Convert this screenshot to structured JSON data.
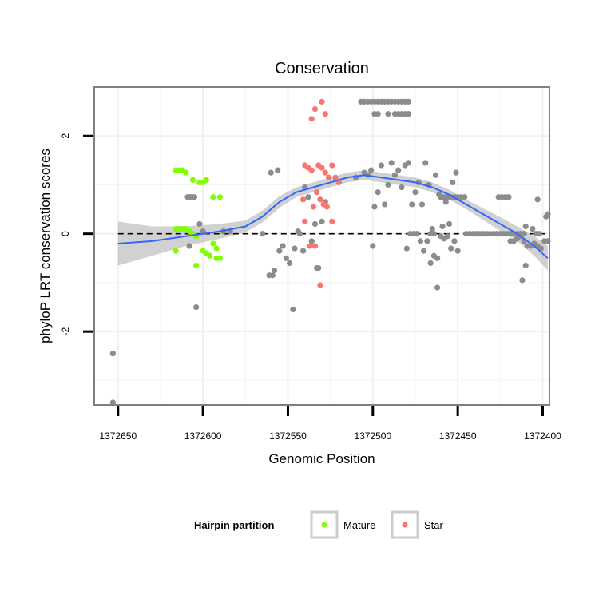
{
  "chart_data": {
    "type": "scatter",
    "title": "Conservation",
    "xlabel": "Genomic Position",
    "ylabel": "phyloP LRT conservation scores",
    "xlim": [
      1372664,
      1372396
    ],
    "ylim": [
      -3.5,
      3.0
    ],
    "x_reversed": true,
    "x_ticks": [
      1372650,
      1372600,
      1372550,
      1372500,
      1372450,
      1372400
    ],
    "x_tick_labels": [
      "1372650",
      "1372600",
      "1372550",
      "1372500",
      "1372450",
      "1372400"
    ],
    "y_ticks": [
      2,
      0,
      -2
    ],
    "y_tick_labels": [
      "2",
      "0",
      "-2"
    ],
    "grid": true,
    "reference_line": {
      "y": 0,
      "style": "dashed",
      "color": "#000000"
    },
    "legend": {
      "title": "Hairpin partition",
      "position": "bottom",
      "entries": [
        {
          "label": "Mature",
          "color": "#7fff00"
        },
        {
          "label": "Star",
          "color": "#f8766d"
        }
      ]
    },
    "colors": {
      "other": "#8c8c8c",
      "Mature": "#7fff00",
      "Star": "#f8766d",
      "smooth": "#3366ff",
      "band": "#bebebe"
    },
    "series": [
      {
        "name": "Other",
        "points": [
          [
            1372653,
            -2.45
          ],
          [
            1372653,
            -3.45
          ],
          [
            1372609,
            0.75
          ],
          [
            1372608,
            0.75
          ],
          [
            1372607,
            0.75
          ],
          [
            1372606,
            0.75
          ],
          [
            1372605,
            0.75
          ],
          [
            1372608,
            -0.25
          ],
          [
            1372602,
            0.2
          ],
          [
            1372600,
            0.05
          ],
          [
            1372604,
            -1.5
          ],
          [
            1372584,
            0.05
          ],
          [
            1372588,
            0.05
          ],
          [
            1372560,
            1.25
          ],
          [
            1372556,
            1.3
          ],
          [
            1372565,
            0.0
          ],
          [
            1372561,
            -0.85
          ],
          [
            1372559,
            -0.85
          ],
          [
            1372558,
            -0.75
          ],
          [
            1372555,
            -0.35
          ],
          [
            1372553,
            -0.25
          ],
          [
            1372551,
            -0.5
          ],
          [
            1372549,
            -0.6
          ],
          [
            1372547,
            -1.55
          ],
          [
            1372546,
            -0.3
          ],
          [
            1372544,
            0.05
          ],
          [
            1372543,
            0.0
          ],
          [
            1372541,
            -0.35
          ],
          [
            1372540,
            0.95
          ],
          [
            1372538,
            0.75
          ],
          [
            1372536,
            -0.15
          ],
          [
            1372534,
            0.2
          ],
          [
            1372533,
            -0.7
          ],
          [
            1372532,
            -0.7
          ],
          [
            1372530,
            0.25
          ],
          [
            1372528,
            0.65
          ],
          [
            1372510,
            1.15
          ],
          [
            1372505,
            1.25
          ],
          [
            1372503,
            1.2
          ],
          [
            1372501,
            1.3
          ],
          [
            1372499,
            0.55
          ],
          [
            1372497,
            0.85
          ],
          [
            1372495,
            1.4
          ],
          [
            1372493,
            0.6
          ],
          [
            1372491,
            1.0
          ],
          [
            1372489,
            1.45
          ],
          [
            1372487,
            1.2
          ],
          [
            1372485,
            1.3
          ],
          [
            1372483,
            0.95
          ],
          [
            1372481,
            1.4
          ],
          [
            1372479,
            1.45
          ],
          [
            1372477,
            0.6
          ],
          [
            1372475,
            0.85
          ],
          [
            1372473,
            1.05
          ],
          [
            1372471,
            0.6
          ],
          [
            1372469,
            1.45
          ],
          [
            1372467,
            1.0
          ],
          [
            1372465,
            0.1
          ],
          [
            1372463,
            1.2
          ],
          [
            1372461,
            0.8
          ],
          [
            1372459,
            0.15
          ],
          [
            1372457,
            0.65
          ],
          [
            1372455,
            0.2
          ],
          [
            1372453,
            1.05
          ],
          [
            1372451,
            1.25
          ],
          [
            1372500,
            -0.25
          ],
          [
            1372480,
            -0.3
          ],
          [
            1372478,
            0.0
          ],
          [
            1372476,
            0.0
          ],
          [
            1372474,
            0.0
          ],
          [
            1372472,
            -0.15
          ],
          [
            1372470,
            -0.35
          ],
          [
            1372468,
            -0.15
          ],
          [
            1372466,
            -0.6
          ],
          [
            1372464,
            -0.45
          ],
          [
            1372462,
            -0.5
          ],
          [
            1372460,
            -0.05
          ],
          [
            1372458,
            -0.1
          ],
          [
            1372456,
            -0.05
          ],
          [
            1372454,
            -0.3
          ],
          [
            1372452,
            -0.15
          ],
          [
            1372450,
            -0.35
          ],
          [
            1372462,
            -1.1
          ],
          [
            1372466,
            0.0
          ],
          [
            1372464,
            0.0
          ],
          [
            1372460,
            0.75
          ],
          [
            1372458,
            0.75
          ],
          [
            1372456,
            0.75
          ],
          [
            1372454,
            0.75
          ],
          [
            1372452,
            0.75
          ],
          [
            1372450,
            0.75
          ],
          [
            1372448,
            0.75
          ],
          [
            1372446,
            0.75
          ],
          [
            1372445,
            0.0
          ],
          [
            1372443,
            0.0
          ],
          [
            1372441,
            0.0
          ],
          [
            1372439,
            0.0
          ],
          [
            1372437,
            0.0
          ],
          [
            1372435,
            0.0
          ],
          [
            1372433,
            0.0
          ],
          [
            1372431,
            0.0
          ],
          [
            1372429,
            0.0
          ],
          [
            1372427,
            0.0
          ],
          [
            1372425,
            0.0
          ],
          [
            1372423,
            0.0
          ],
          [
            1372421,
            0.0
          ],
          [
            1372419,
            0.0
          ],
          [
            1372417,
            0.0
          ],
          [
            1372415,
            0.0
          ],
          [
            1372413,
            0.0
          ],
          [
            1372411,
            0.0
          ],
          [
            1372426,
            0.75
          ],
          [
            1372424,
            0.75
          ],
          [
            1372422,
            0.75
          ],
          [
            1372420,
            0.75
          ],
          [
            1372419,
            -0.15
          ],
          [
            1372417,
            -0.15
          ],
          [
            1372415,
            -0.1
          ],
          [
            1372413,
            -0.05
          ],
          [
            1372411,
            -0.15
          ],
          [
            1372409,
            -0.25
          ],
          [
            1372407,
            -0.25
          ],
          [
            1372405,
            -0.2
          ],
          [
            1372403,
            -0.25
          ],
          [
            1372401,
            -0.3
          ],
          [
            1372399,
            -0.15
          ],
          [
            1372397,
            -0.15
          ],
          [
            1372410,
            0.15
          ],
          [
            1372406,
            0.1
          ],
          [
            1372404,
            0.0
          ],
          [
            1372402,
            0.0
          ],
          [
            1372412,
            -0.95
          ],
          [
            1372410,
            -0.65
          ],
          [
            1372403,
            0.7
          ],
          [
            1372398,
            0.35
          ],
          [
            1372397,
            0.4
          ],
          [
            1372507,
            2.7
          ],
          [
            1372505,
            2.7
          ],
          [
            1372503,
            2.7
          ],
          [
            1372501,
            2.7
          ],
          [
            1372499,
            2.7
          ],
          [
            1372497,
            2.7
          ],
          [
            1372495,
            2.7
          ],
          [
            1372493,
            2.7
          ],
          [
            1372491,
            2.7
          ],
          [
            1372489,
            2.7
          ],
          [
            1372487,
            2.7
          ],
          [
            1372485,
            2.7
          ],
          [
            1372483,
            2.7
          ],
          [
            1372481,
            2.7
          ],
          [
            1372479,
            2.7
          ],
          [
            1372499,
            2.45
          ],
          [
            1372497,
            2.45
          ],
          [
            1372491,
            2.45
          ],
          [
            1372487,
            2.45
          ],
          [
            1372485,
            2.45
          ],
          [
            1372483,
            2.45
          ],
          [
            1372481,
            2.45
          ],
          [
            1372479,
            2.45
          ]
        ]
      },
      {
        "name": "Mature",
        "points": [
          [
            1372616,
            1.3
          ],
          [
            1372614,
            1.3
          ],
          [
            1372612,
            1.3
          ],
          [
            1372610,
            1.25
          ],
          [
            1372606,
            1.1
          ],
          [
            1372602,
            1.05
          ],
          [
            1372600,
            1.05
          ],
          [
            1372598,
            1.1
          ],
          [
            1372594,
            0.75
          ],
          [
            1372590,
            0.75
          ],
          [
            1372616,
            0.1
          ],
          [
            1372614,
            0.1
          ],
          [
            1372612,
            0.1
          ],
          [
            1372610,
            0.1
          ],
          [
            1372608,
            0.05
          ],
          [
            1372616,
            -0.35
          ],
          [
            1372604,
            -0.65
          ],
          [
            1372600,
            -0.35
          ],
          [
            1372598,
            -0.4
          ],
          [
            1372596,
            -0.45
          ],
          [
            1372594,
            -0.2
          ],
          [
            1372592,
            -0.3
          ],
          [
            1372590,
            -0.5
          ],
          [
            1372592,
            -0.5
          ],
          [
            1372606,
            0.0
          ],
          [
            1372604,
            -0.05
          ]
        ]
      },
      {
        "name": "Star",
        "points": [
          [
            1372536,
            2.35
          ],
          [
            1372534,
            2.55
          ],
          [
            1372530,
            2.7
          ],
          [
            1372528,
            2.45
          ],
          [
            1372540,
            1.4
          ],
          [
            1372538,
            1.35
          ],
          [
            1372536,
            1.3
          ],
          [
            1372532,
            1.4
          ],
          [
            1372530,
            1.35
          ],
          [
            1372528,
            1.25
          ],
          [
            1372526,
            1.15
          ],
          [
            1372524,
            1.4
          ],
          [
            1372522,
            1.15
          ],
          [
            1372520,
            1.05
          ],
          [
            1372541,
            0.7
          ],
          [
            1372535,
            0.55
          ],
          [
            1372533,
            0.85
          ],
          [
            1372531,
            0.7
          ],
          [
            1372529,
            0.6
          ],
          [
            1372527,
            0.55
          ],
          [
            1372540,
            0.25
          ],
          [
            1372537,
            -0.25
          ],
          [
            1372534,
            -0.25
          ],
          [
            1372524,
            0.25
          ],
          [
            1372531,
            -1.05
          ]
        ]
      }
    ],
    "smooth_curve": [
      [
        1372650,
        -0.2
      ],
      [
        1372630,
        -0.15
      ],
      [
        1372610,
        -0.05
      ],
      [
        1372590,
        0.05
      ],
      [
        1372575,
        0.15
      ],
      [
        1372565,
        0.35
      ],
      [
        1372555,
        0.65
      ],
      [
        1372545,
        0.85
      ],
      [
        1372535,
        0.95
      ],
      [
        1372525,
        1.05
      ],
      [
        1372515,
        1.15
      ],
      [
        1372505,
        1.2
      ],
      [
        1372495,
        1.15
      ],
      [
        1372485,
        1.1
      ],
      [
        1372475,
        1.05
      ],
      [
        1372465,
        0.95
      ],
      [
        1372455,
        0.8
      ],
      [
        1372445,
        0.6
      ],
      [
        1372435,
        0.4
      ],
      [
        1372425,
        0.2
      ],
      [
        1372415,
        0.0
      ],
      [
        1372405,
        -0.25
      ],
      [
        1372397,
        -0.5
      ]
    ],
    "smooth_band": [
      [
        1372650,
        -0.2,
        0.45
      ],
      [
        1372630,
        -0.15,
        0.3
      ],
      [
        1372610,
        -0.05,
        0.2
      ],
      [
        1372590,
        0.05,
        0.15
      ],
      [
        1372575,
        0.15,
        0.12
      ],
      [
        1372565,
        0.35,
        0.12
      ],
      [
        1372555,
        0.65,
        0.12
      ],
      [
        1372545,
        0.85,
        0.1
      ],
      [
        1372535,
        0.95,
        0.1
      ],
      [
        1372525,
        1.05,
        0.1
      ],
      [
        1372515,
        1.15,
        0.1
      ],
      [
        1372505,
        1.2,
        0.1
      ],
      [
        1372495,
        1.15,
        0.1
      ],
      [
        1372485,
        1.1,
        0.1
      ],
      [
        1372475,
        1.05,
        0.1
      ],
      [
        1372465,
        0.95,
        0.1
      ],
      [
        1372455,
        0.8,
        0.1
      ],
      [
        1372445,
        0.6,
        0.1
      ],
      [
        1372435,
        0.4,
        0.12
      ],
      [
        1372425,
        0.2,
        0.14
      ],
      [
        1372415,
        0.0,
        0.15
      ],
      [
        1372405,
        -0.25,
        0.2
      ],
      [
        1372397,
        -0.5,
        0.25
      ]
    ]
  }
}
